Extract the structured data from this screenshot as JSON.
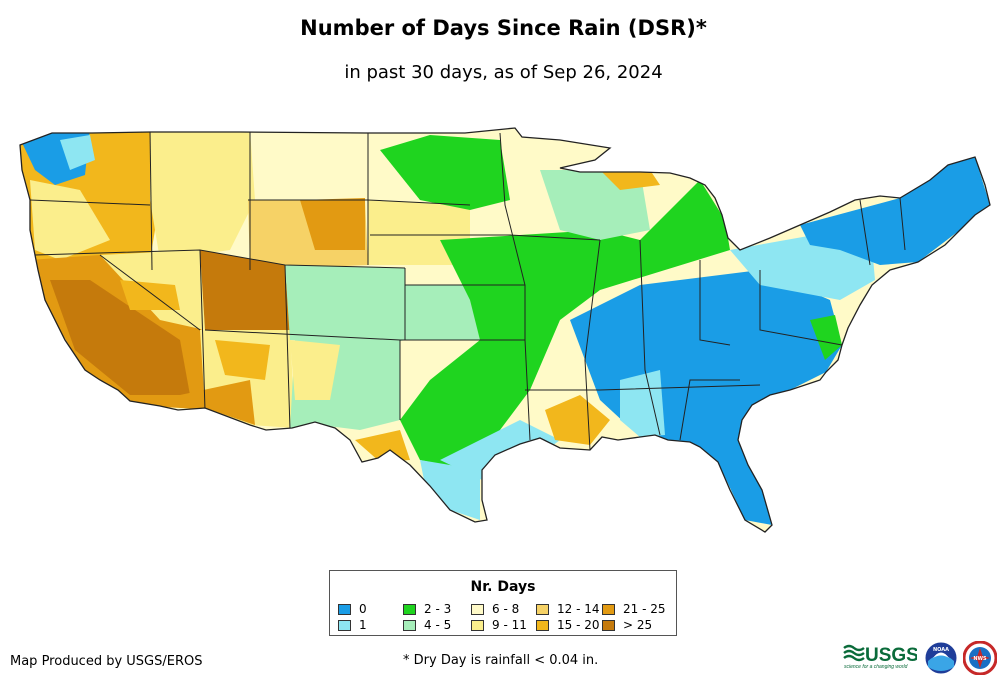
{
  "header": {
    "title": "Number of Days Since Rain (DSR)*",
    "subtitle": "in past 30 days, as of Sep 26, 2024"
  },
  "legend": {
    "title": "Nr. Days",
    "items": [
      {
        "label": "0",
        "color": "#1a9de6"
      },
      {
        "label": "1",
        "color": "#8ee6f2"
      },
      {
        "label": "2 - 3",
        "color": "#1fd41f"
      },
      {
        "label": "4 - 5",
        "color": "#a6eeba"
      },
      {
        "label": "6 - 8",
        "color": "#fffac8"
      },
      {
        "label": "9 - 11",
        "color": "#fbee8c"
      },
      {
        "label": "12 - 14",
        "color": "#f6d266"
      },
      {
        "label": "15 - 20",
        "color": "#f2b71c"
      },
      {
        "label": "21 - 25",
        "color": "#e29a12"
      },
      {
        "label": "> 25",
        "color": "#c57a0c"
      }
    ]
  },
  "footer": {
    "credit": "Map Produced by USGS/EROS",
    "footnote": "* Dry Day is rainfall < 0.04 in."
  },
  "logos": [
    {
      "name": "usgs-logo",
      "text": "USGS",
      "tagline": "science for a changing world"
    },
    {
      "name": "noaa-logo",
      "text": "NOAA"
    },
    {
      "name": "nws-logo",
      "text": "NWS"
    }
  ]
}
